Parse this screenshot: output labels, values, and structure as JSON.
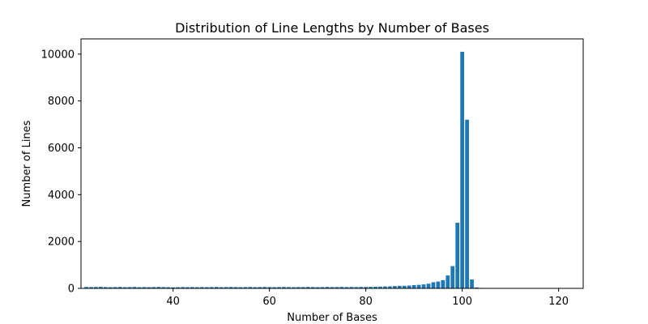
{
  "chart_data": {
    "type": "bar",
    "title": "Distribution of Line Lengths by Number of Bases",
    "xlabel": "Number of Bases",
    "ylabel": "Number of Lines",
    "xlim": [
      20.9,
      125.1
    ],
    "ylim": [
      0,
      10650
    ],
    "xticks": [
      40,
      60,
      80,
      100,
      120
    ],
    "yticks": [
      0,
      2000,
      4000,
      6000,
      8000,
      10000
    ],
    "grid": false,
    "bar_color": "#1f77b4",
    "x": [
      22,
      23,
      24,
      25,
      26,
      27,
      28,
      29,
      30,
      31,
      32,
      33,
      34,
      35,
      36,
      37,
      38,
      39,
      40,
      41,
      42,
      43,
      44,
      45,
      46,
      47,
      48,
      49,
      50,
      51,
      52,
      53,
      54,
      55,
      56,
      57,
      58,
      59,
      60,
      61,
      62,
      63,
      64,
      65,
      66,
      67,
      68,
      69,
      70,
      71,
      72,
      73,
      74,
      75,
      76,
      77,
      78,
      79,
      80,
      81,
      82,
      83,
      84,
      85,
      86,
      87,
      88,
      89,
      90,
      91,
      92,
      93,
      94,
      95,
      96,
      97,
      98,
      99,
      100,
      101,
      102,
      103,
      104,
      105,
      106,
      107,
      108,
      109,
      110,
      111,
      112,
      113,
      114,
      115,
      116,
      117,
      118,
      119,
      120,
      121,
      122,
      123,
      124
    ],
    "values": [
      60,
      55,
      60,
      65,
      55,
      50,
      55,
      60,
      50,
      55,
      60,
      50,
      55,
      50,
      55,
      60,
      55,
      50,
      45,
      50,
      55,
      50,
      55,
      50,
      55,
      50,
      55,
      60,
      50,
      55,
      60,
      55,
      50,
      55,
      60,
      50,
      55,
      60,
      55,
      50,
      55,
      60,
      55,
      50,
      55,
      55,
      60,
      55,
      50,
      55,
      60,
      55,
      55,
      60,
      55,
      60,
      55,
      60,
      60,
      65,
      70,
      75,
      80,
      85,
      100,
      110,
      110,
      120,
      140,
      150,
      170,
      200,
      260,
      290,
      350,
      550,
      950,
      2800,
      10100,
      7200,
      380,
      40,
      20,
      10,
      5,
      3,
      2,
      2,
      1,
      1,
      1,
      1,
      1,
      1,
      1,
      1,
      1,
      1,
      1,
      1,
      1,
      1,
      1
    ]
  }
}
